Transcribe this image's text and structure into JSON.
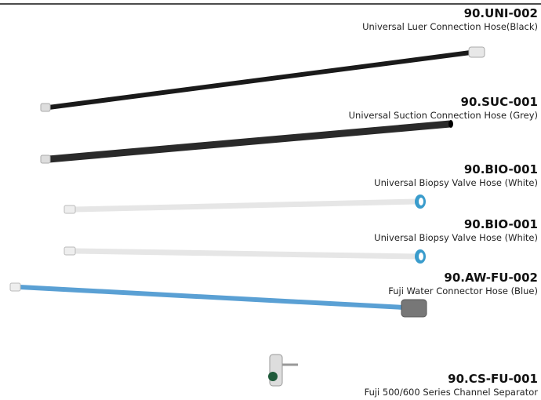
{
  "items": [
    {
      "code": "90.UNI-002",
      "name": "Universal Luer Connection Hose(Black)"
    },
    {
      "code": "90.SUC-001",
      "name": "Universal Suction Connection Hose (Grey)"
    },
    {
      "code": "90.BIO-001",
      "name": "Universal Biopsy Valve Hose (White)"
    },
    {
      "code": "90.BIO-001",
      "name": "Universal Biopsy Valve Hose (White)"
    },
    {
      "code": "90.AW-FU-002",
      "name": "Fuji Water Connector Hose (Blue)"
    },
    {
      "code": "90.CS-FU-001",
      "name": "Fuji 500/600 Series Channel Separator"
    }
  ]
}
